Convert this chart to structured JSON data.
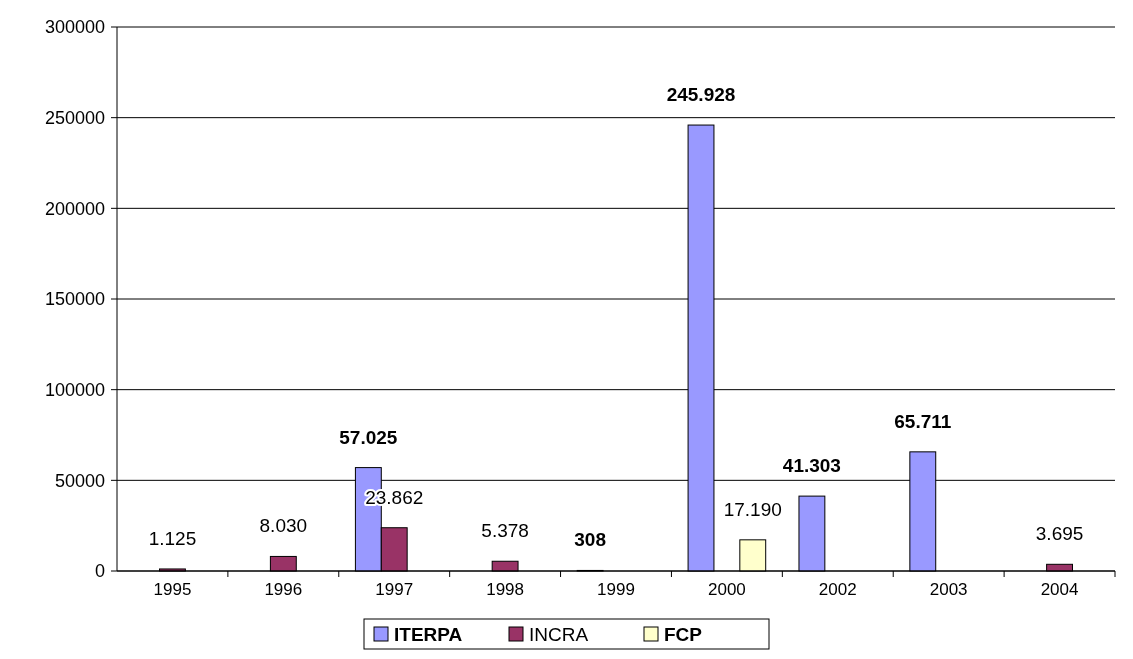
{
  "chart_data": {
    "type": "bar",
    "categories": [
      "1995",
      "1996",
      "1997",
      "1998",
      "1999",
      "2000",
      "2002",
      "2003",
      "2004"
    ],
    "series": [
      {
        "name": "ITERPA",
        "color": "#9999ff",
        "values": [
          null,
          null,
          57025,
          null,
          308,
          245928,
          41303,
          65711,
          null
        ],
        "value_labels": [
          null,
          null,
          "57.025",
          null,
          "308",
          "245.928",
          "41.303",
          "65.711",
          null
        ]
      },
      {
        "name": "INCRA",
        "color": "#993366",
        "values": [
          1125,
          8030,
          23862,
          5378,
          null,
          null,
          null,
          null,
          3695
        ],
        "value_labels": [
          "1.125",
          "8.030",
          "23.862",
          "5.378",
          null,
          null,
          null,
          null,
          "3.695"
        ]
      },
      {
        "name": "FCP",
        "color": "#ffffcc",
        "values": [
          null,
          null,
          null,
          null,
          null,
          17190,
          null,
          null,
          null
        ],
        "value_labels": [
          null,
          null,
          null,
          null,
          null,
          "17.190",
          null,
          null,
          null
        ]
      }
    ],
    "ylim": [
      0,
      300000
    ],
    "yticks": [
      0,
      50000,
      100000,
      150000,
      200000,
      250000,
      300000
    ],
    "grid": "y",
    "legend": "bottom"
  }
}
